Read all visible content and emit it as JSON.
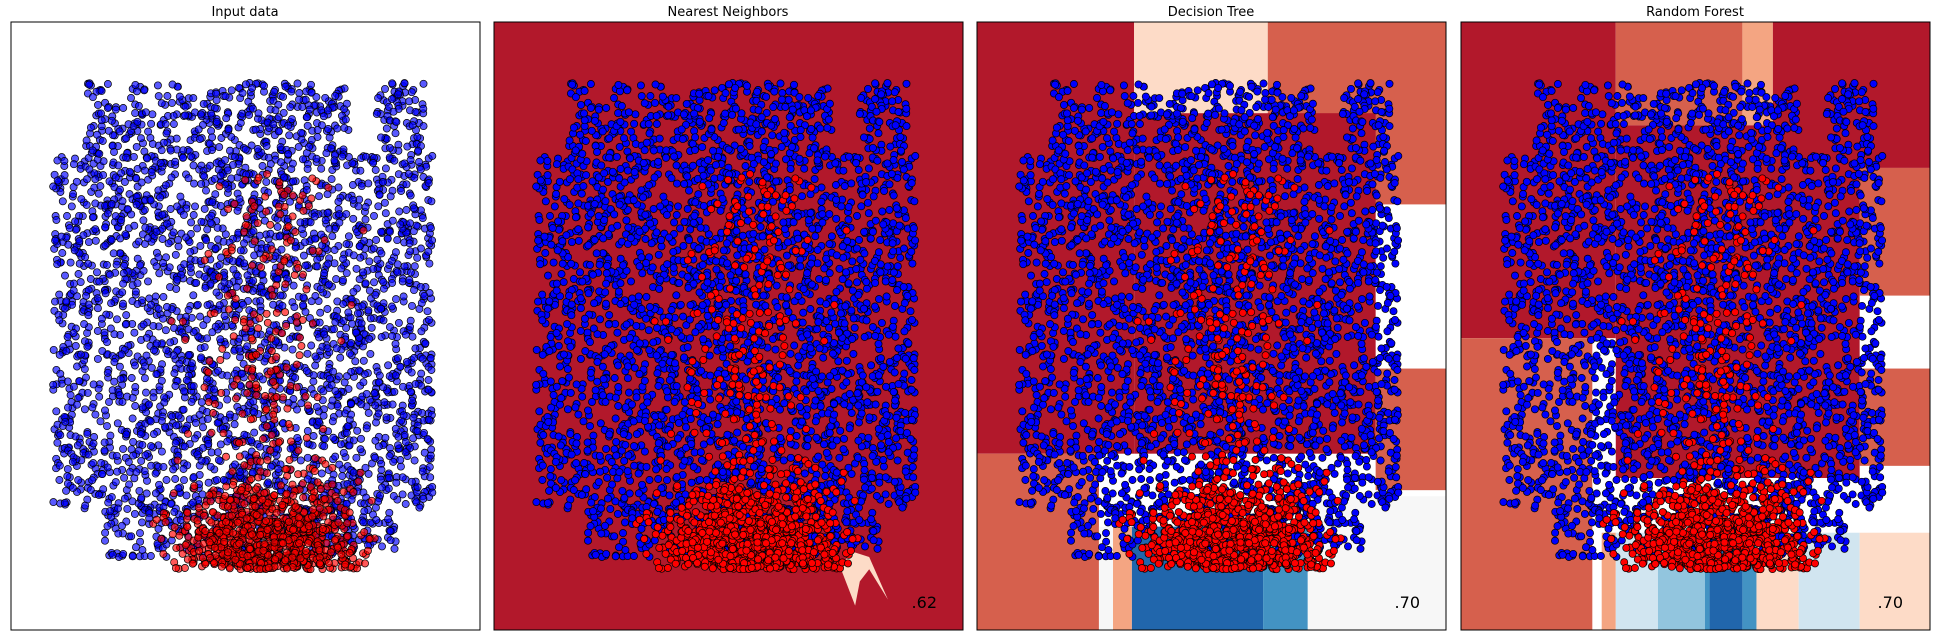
{
  "figure": {
    "panels": [
      {
        "id": "input",
        "title": "Input data",
        "score": ""
      },
      {
        "id": "knn",
        "title": "Nearest Neighbors",
        "score": ".62"
      },
      {
        "id": "tree",
        "title": "Decision Tree",
        "score": ".70"
      },
      {
        "id": "forest",
        "title": "Random Forest",
        "score": ".70"
      }
    ]
  },
  "colors": {
    "class_0": "#0000ff",
    "class_1": "#ff0000",
    "marker_edge": "#000000",
    "rdbu_strong_red": "#b2182b",
    "rdbu_red": "#d6604d",
    "rdbu_salmon": "#f4a582",
    "rdbu_peach": "#fddbc7",
    "rdbu_white": "#f7f7f7",
    "rdbu_pale_blue": "#d1e5f0",
    "rdbu_light_blue": "#92c5de",
    "rdbu_mid_blue": "#4393c3",
    "rdbu_dark_blue": "#2166ac"
  },
  "chart_data": [
    {
      "type": "scatter",
      "title": "Input data",
      "xlabel": "",
      "ylabel": "",
      "ticks": "hidden",
      "xlim": [
        0,
        1
      ],
      "ylim": [
        0,
        1
      ],
      "series": [
        {
          "class": 0,
          "color": "#0000ff",
          "region": {
            "x": [
              0.08,
              0.92
            ],
            "y": [
              0.08,
              0.93
            ]
          }
        },
        {
          "class": 1,
          "color": "#ff0000",
          "region": {
            "x": [
              0.3,
              0.7
            ],
            "y": [
              0.06,
              0.3
            ]
          }
        }
      ]
    },
    {
      "type": "scatter",
      "title": "Nearest Neighbors",
      "score": ".62",
      "background": "decision function (RdBu colormap)",
      "xlim": [
        0,
        1
      ],
      "ylim": [
        0,
        1
      ],
      "regions": [
        {
          "x": [
            0,
            1
          ],
          "y": [
            0,
            1
          ],
          "color": "#b2182b"
        }
      ]
    },
    {
      "type": "scatter",
      "title": "Decision Tree",
      "score": ".70",
      "background": "decision function (RdBu colormap)",
      "xlim": [
        0,
        1
      ],
      "ylim": [
        0,
        1
      ],
      "regions": [
        {
          "x": [
            0,
            0.335
          ],
          "y": [
            0.29,
            1
          ],
          "color": "#b2182b"
        },
        {
          "x": [
            0,
            0.26
          ],
          "y": [
            0,
            0.29
          ],
          "color": "#d6604d"
        },
        {
          "x": [
            0.335,
            0.62
          ],
          "y": [
            0.85,
            1
          ],
          "color": "#fddbc7"
        },
        {
          "x": [
            0.62,
            1
          ],
          "y": [
            0.7,
            1
          ],
          "color": "#d6604d"
        },
        {
          "x": [
            0.335,
            0.85
          ],
          "y": [
            0.29,
            0.85
          ],
          "color": "#b2182b"
        },
        {
          "x": [
            0.85,
            1
          ],
          "y": [
            0.23,
            0.43
          ],
          "color": "#d6604d"
        },
        {
          "x": [
            0.7,
            1
          ],
          "y": [
            0,
            0.22
          ],
          "color": "#f7f7f7"
        },
        {
          "x": [
            0.33,
            0.61
          ],
          "y": [
            0,
            0.17
          ],
          "color": "#2166ac"
        },
        {
          "x": [
            0.61,
            0.705
          ],
          "y": [
            0,
            0.17
          ],
          "color": "#4393c3"
        },
        {
          "x": [
            0.26,
            0.29
          ],
          "y": [
            0,
            0.17
          ],
          "color": "#f7f7f7"
        },
        {
          "x": [
            0.29,
            0.33
          ],
          "y": [
            0,
            0.17
          ],
          "color": "#f4a582"
        }
      ]
    },
    {
      "type": "scatter",
      "title": "Random Forest",
      "score": ".70",
      "background": "decision function (RdBu colormap)",
      "xlim": [
        0,
        1
      ],
      "ylim": [
        0,
        1
      ],
      "regions": [
        {
          "x": [
            0,
            0.33
          ],
          "y": [
            0.48,
            1
          ],
          "color": "#b2182b"
        },
        {
          "x": [
            0,
            0.28
          ],
          "y": [
            0,
            0.48
          ],
          "color": "#d6604d"
        },
        {
          "x": [
            0.33,
            0.6
          ],
          "y": [
            0.83,
            1
          ],
          "color": "#d6604d"
        },
        {
          "x": [
            0.6,
            0.665
          ],
          "y": [
            0.83,
            1
          ],
          "color": "#f4a582"
        },
        {
          "x": [
            0.665,
            1
          ],
          "y": [
            0.76,
            1
          ],
          "color": "#b2182b"
        },
        {
          "x": [
            0.33,
            0.85
          ],
          "y": [
            0.25,
            0.83
          ],
          "color": "#b2182b"
        },
        {
          "x": [
            0.85,
            1
          ],
          "y": [
            0.55,
            0.76
          ],
          "color": "#d6604d"
        },
        {
          "x": [
            0.85,
            1
          ],
          "y": [
            0.27,
            0.43
          ],
          "color": "#d6604d"
        },
        {
          "x": [
            0.3,
            0.33
          ],
          "y": [
            0,
            0.16
          ],
          "color": "#f4a582"
        },
        {
          "x": [
            0.33,
            0.42
          ],
          "y": [
            0,
            0.16
          ],
          "color": "#d1e5f0"
        },
        {
          "x": [
            0.42,
            0.52
          ],
          "y": [
            0,
            0.16
          ],
          "color": "#92c5de"
        },
        {
          "x": [
            0.52,
            0.53
          ],
          "y": [
            0,
            0.16
          ],
          "color": "#4393c3"
        },
        {
          "x": [
            0.53,
            0.6
          ],
          "y": [
            0,
            0.16
          ],
          "color": "#2166ac"
        },
        {
          "x": [
            0.6,
            0.63
          ],
          "y": [
            0,
            0.16
          ],
          "color": "#4393c3"
        },
        {
          "x": [
            0.63,
            0.72
          ],
          "y": [
            0,
            0.16
          ],
          "color": "#fddbc7"
        },
        {
          "x": [
            0.72,
            0.85
          ],
          "y": [
            0,
            0.16
          ],
          "color": "#d1e5f0"
        },
        {
          "x": [
            0.85,
            1
          ],
          "y": [
            0,
            0.16
          ],
          "color": "#fddbc7"
        }
      ]
    }
  ]
}
